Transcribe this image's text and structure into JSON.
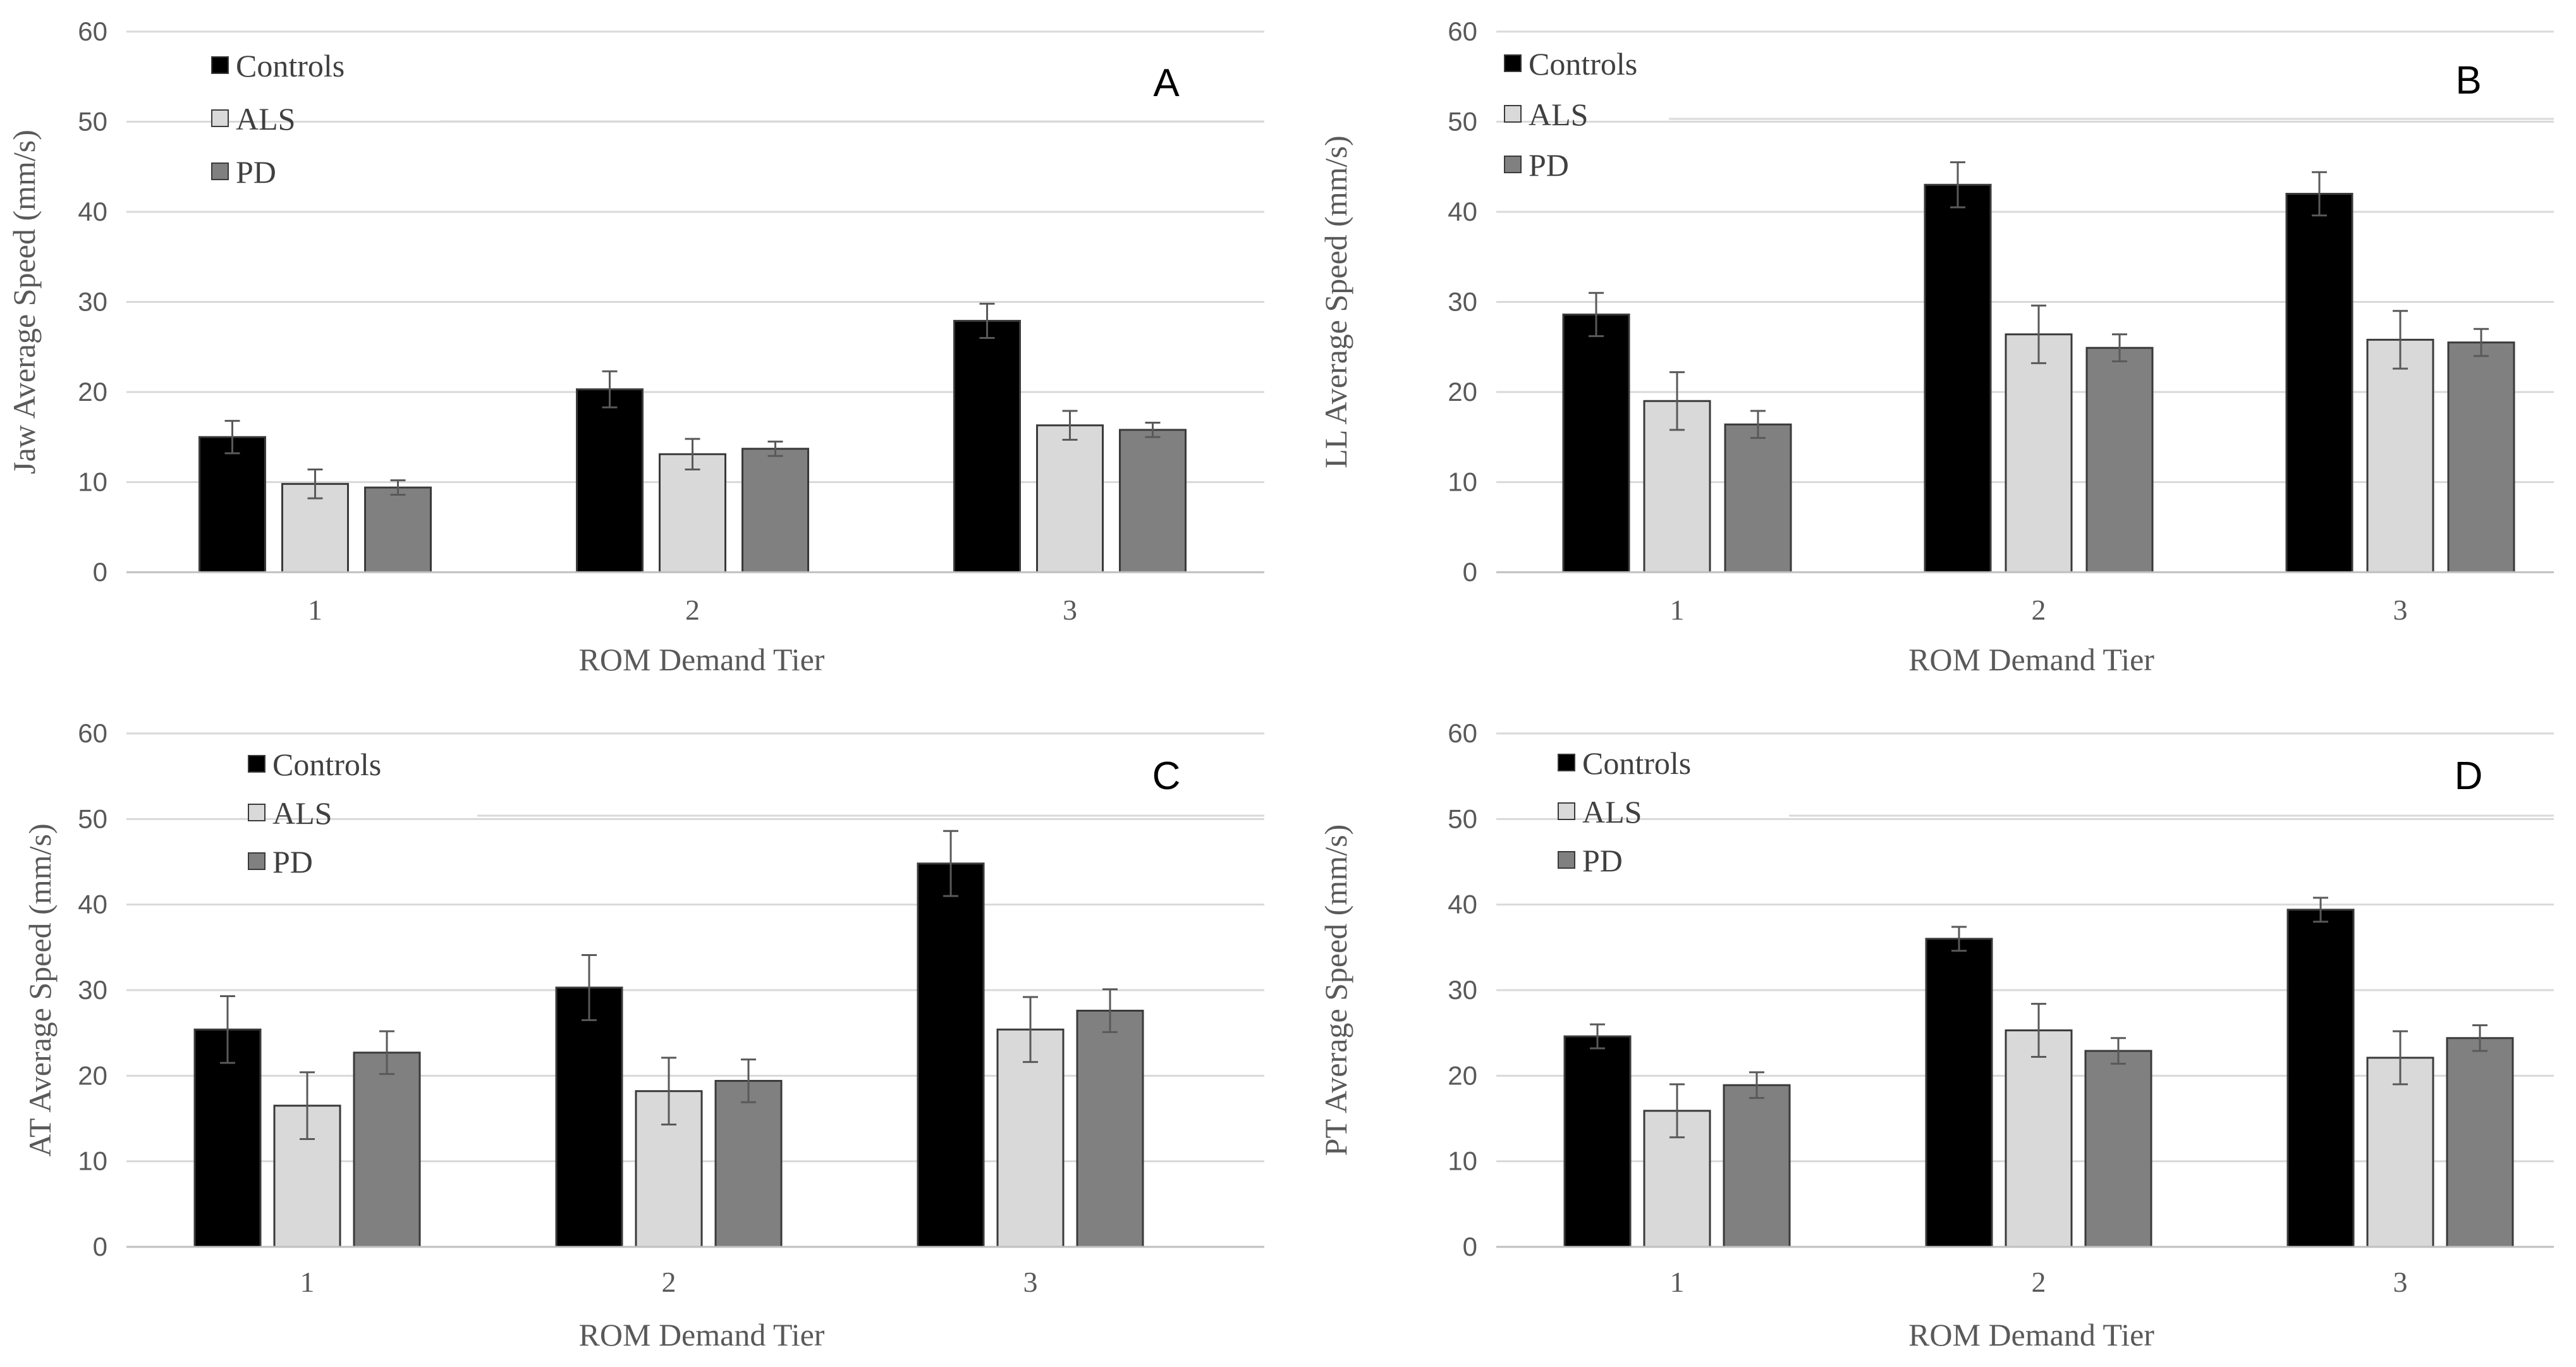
{
  "legend_labels": [
    "Controls",
    "ALS",
    "PD"
  ],
  "colors": {
    "Controls": "#000000",
    "ALS": "#d9d9d9",
    "PD": "#808080"
  },
  "chart_data": [
    {
      "panel": "A",
      "type": "bar",
      "title": "",
      "xlabel": "ROM Demand Tier",
      "ylabel": "Jaw Average Speed (mm/s)",
      "categories": [
        "1",
        "2",
        "3"
      ],
      "ylim": [
        0,
        60
      ],
      "yticks": [
        "0",
        "10",
        "20",
        "30",
        "40",
        "50",
        "60"
      ],
      "series": [
        {
          "name": "Controls",
          "values": [
            15,
            20.3,
            27.9
          ],
          "errors": [
            1.8,
            2,
            1.9
          ]
        },
        {
          "name": "ALS",
          "values": [
            9.8,
            13.1,
            16.3
          ],
          "errors": [
            1.6,
            1.7,
            1.6
          ]
        },
        {
          "name": "PD",
          "values": [
            9.4,
            13.7,
            15.8
          ],
          "errors": [
            0.8,
            0.8,
            0.8
          ]
        }
      ]
    },
    {
      "panel": "B",
      "type": "bar",
      "title": "",
      "xlabel": "ROM Demand Tier",
      "ylabel": "LL Average Speed (mm/s)",
      "categories": [
        "1",
        "2",
        "3"
      ],
      "ylim": [
        0,
        60
      ],
      "yticks": [
        "0",
        "10",
        "20",
        "30",
        "40",
        "50",
        "60"
      ],
      "series": [
        {
          "name": "Controls",
          "values": [
            28.6,
            43,
            42
          ],
          "errors": [
            2.4,
            2.5,
            2.4
          ]
        },
        {
          "name": "ALS",
          "values": [
            19,
            26.4,
            25.8
          ],
          "errors": [
            3.2,
            3.2,
            3.2
          ]
        },
        {
          "name": "PD",
          "values": [
            16.4,
            24.9,
            25.5
          ],
          "errors": [
            1.5,
            1.5,
            1.5
          ]
        }
      ]
    },
    {
      "panel": "C",
      "type": "bar",
      "title": "",
      "xlabel": "ROM Demand Tier",
      "ylabel": "AT Average Speed (mm/s)",
      "categories": [
        "1",
        "2",
        "3"
      ],
      "ylim": [
        0,
        60
      ],
      "yticks": [
        "0",
        "10",
        "20",
        "30",
        "40",
        "50",
        "60"
      ],
      "series": [
        {
          "name": "Controls",
          "values": [
            25.4,
            30.3,
            44.8
          ],
          "errors": [
            3.9,
            3.8,
            3.8
          ]
        },
        {
          "name": "ALS",
          "values": [
            16.5,
            18.2,
            25.4
          ],
          "errors": [
            3.9,
            3.9,
            3.8
          ]
        },
        {
          "name": "PD",
          "values": [
            22.7,
            19.4,
            27.6
          ],
          "errors": [
            2.5,
            2.5,
            2.5
          ]
        }
      ]
    },
    {
      "panel": "D",
      "type": "bar",
      "title": "",
      "xlabel": "ROM Demand Tier",
      "ylabel": "PT Average Speed (mm/s)",
      "categories": [
        "1",
        "2",
        "3"
      ],
      "ylim": [
        0,
        60
      ],
      "yticks": [
        "0",
        "10",
        "20",
        "30",
        "40",
        "50",
        "60"
      ],
      "series": [
        {
          "name": "Controls",
          "values": [
            24.6,
            36,
            39.4
          ],
          "errors": [
            1.4,
            1.4,
            1.4
          ]
        },
        {
          "name": "ALS",
          "values": [
            15.9,
            25.3,
            22.1
          ],
          "errors": [
            3.1,
            3.1,
            3.1
          ]
        },
        {
          "name": "PD",
          "values": [
            18.9,
            22.9,
            24.4
          ],
          "errors": [
            1.5,
            1.5,
            1.5
          ]
        }
      ]
    }
  ]
}
